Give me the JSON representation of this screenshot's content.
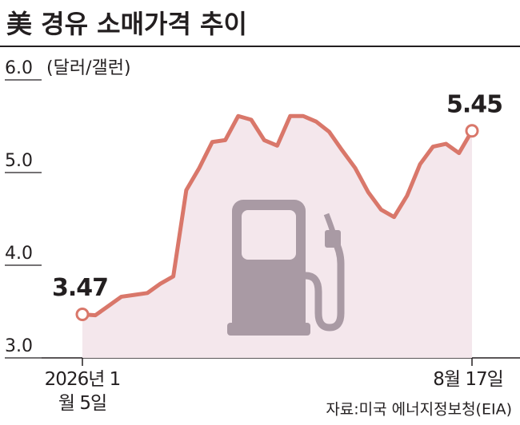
{
  "chart_data": {
    "type": "line",
    "title": "美 경유 소매가격 추이",
    "y_label": "(달러/갤런)",
    "source": "자료:미국 에너지정보청(EIA)",
    "categories": [
      "2026년 1월 5일",
      null,
      null,
      null,
      null,
      null,
      null,
      null,
      null,
      null,
      null,
      null,
      null,
      null,
      null,
      null,
      null,
      null,
      null,
      null,
      null,
      null,
      null,
      null,
      null,
      null,
      null,
      null,
      null,
      null,
      "8월 17일"
    ],
    "series": [
      {
        "name": "경유 소매가격",
        "color": "#d9776a",
        "values": [
          3.47,
          3.46,
          3.56,
          3.66,
          3.68,
          3.7,
          3.8,
          3.88,
          4.81,
          5.05,
          5.33,
          5.35,
          5.61,
          5.57,
          5.35,
          5.29,
          5.61,
          5.61,
          5.55,
          5.44,
          5.24,
          5.05,
          4.79,
          4.6,
          4.52,
          4.75,
          5.09,
          5.28,
          5.31,
          5.21,
          5.45
        ]
      }
    ],
    "ylim": [
      3.0,
      6.0
    ],
    "yticks": [
      {
        "value": 3.0,
        "label": "3.0"
      },
      {
        "value": 4.0,
        "label": "4.0"
      },
      {
        "value": 5.0,
        "label": "5.0"
      },
      {
        "value": 6.0,
        "label": "6.0"
      }
    ],
    "fill_color": "#f4e7ec"
  }
}
